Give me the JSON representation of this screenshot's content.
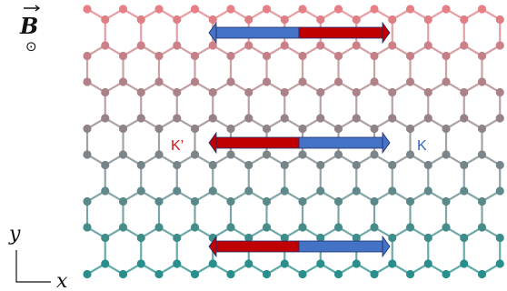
{
  "field": {
    "symbol": "B",
    "out_of_plane_symbol": "⊙"
  },
  "valley_labels": {
    "left": "K’",
    "right": "K"
  },
  "axes": {
    "x_label": "x",
    "y_label": "y"
  },
  "colors": {
    "lattice_top": "#e67f86",
    "lattice_mid": "#8a8388",
    "lattice_bottom": "#2a8f8c",
    "arrow_red": "#c00000",
    "arrow_blue": "#4472c4",
    "arrow_outline": "#1f2f70",
    "valley_left_color": "#d01818",
    "valley_right_color": "#2f63c8"
  },
  "arrows": [
    {
      "name": "top-edge-arrows",
      "left_color": "blue",
      "right_color": "red"
    },
    {
      "name": "bulk-arrows",
      "left_color": "red",
      "right_color": "blue"
    },
    {
      "name": "bottom-edge-arrows",
      "left_color": "red",
      "right_color": "blue"
    }
  ]
}
